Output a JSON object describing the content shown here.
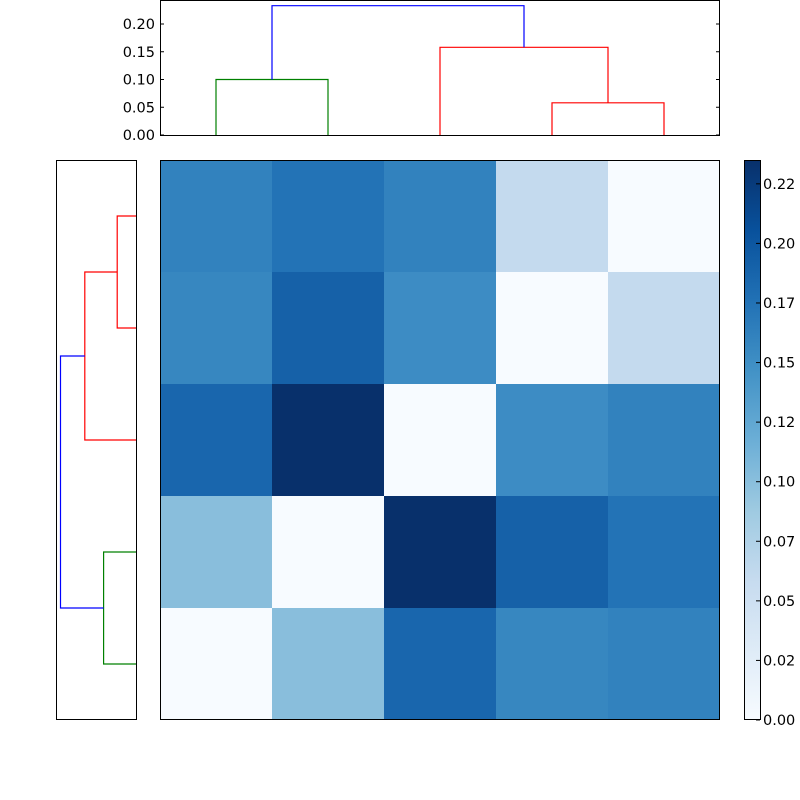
{
  "chart_data": [
    {
      "type": "dendrogram",
      "name": "top-dendrogram",
      "orientation": "top",
      "ylabel": "",
      "xlabel": "",
      "ylim": [
        0,
        0.24
      ],
      "yticks": [
        "0.00",
        "0.05",
        "0.10",
        "0.15",
        "0.20"
      ],
      "leaf_positions": [
        0,
        1,
        2,
        3,
        4
      ],
      "links": [
        {
          "color": "#008000",
          "height": 0.1,
          "left": 0,
          "right": 1,
          "left_h": 0,
          "right_h": 0
        },
        {
          "color": "#ff0000",
          "height": 0.058,
          "left": 3,
          "right": 4,
          "left_h": 0,
          "right_h": 0
        },
        {
          "color": "#ff0000",
          "height": 0.158,
          "left": 2,
          "right": 3.5,
          "left_h": 0,
          "right_h": 0.058
        },
        {
          "color": "#0000ff",
          "height": 0.233,
          "left": 0.5,
          "right": 2.75,
          "left_h": 0.1,
          "right_h": 0.158
        }
      ]
    },
    {
      "type": "dendrogram",
      "name": "left-dendrogram",
      "orientation": "left",
      "xlim": [
        0.24,
        0
      ],
      "leaf_positions": [
        0,
        1,
        2,
        3,
        4
      ],
      "links": [
        {
          "color": "#ff0000",
          "height": 0.058,
          "top": 0,
          "bottom": 1,
          "top_h": 0,
          "bottom_h": 0
        },
        {
          "color": "#ff0000",
          "height": 0.158,
          "top": 0.5,
          "bottom": 2,
          "top_h": 0.058,
          "bottom_h": 0
        },
        {
          "color": "#008000",
          "height": 0.1,
          "top": 3,
          "bottom": 4,
          "top_h": 0,
          "bottom_h": 0
        },
        {
          "color": "#0000ff",
          "height": 0.233,
          "top": 1.25,
          "bottom": 3.5,
          "top_h": 0.158,
          "bottom_h": 0.1
        }
      ]
    },
    {
      "type": "heatmap",
      "name": "distance-matrix",
      "colormap": "Blues",
      "rows": 5,
      "cols": 5,
      "values": [
        [
          0.145,
          0.175,
          0.145,
          0.05,
          0.0
        ],
        [
          0.14,
          0.19,
          0.13,
          0.0,
          0.05
        ],
        [
          0.185,
          0.235,
          0.0,
          0.13,
          0.145
        ],
        [
          0.09,
          0.0,
          0.235,
          0.19,
          0.175
        ],
        [
          0.0,
          0.09,
          0.185,
          0.14,
          0.145
        ]
      ],
      "colors": [
        [
          "#3282be",
          "#2373b6",
          "#3282be",
          "#c4daee",
          "#f7fbff"
        ],
        [
          "#3787c0",
          "#1661a8",
          "#3d8cc4",
          "#f7fbff",
          "#c4daee"
        ],
        [
          "#1966ad",
          "#08306b",
          "#f7fbff",
          "#3d8cc4",
          "#3282be"
        ],
        [
          "#89bedc",
          "#f7fbff",
          "#08306b",
          "#1661a8",
          "#2373b6"
        ],
        [
          "#f7fbff",
          "#89bedc",
          "#1966ad",
          "#3787c0",
          "#3282be"
        ]
      ]
    },
    {
      "type": "colorbar",
      "name": "colorbar",
      "colormap": "Blues",
      "range": [
        0,
        0.235
      ],
      "ticks": [
        {
          "value": 0.0,
          "label": "0.00"
        },
        {
          "value": 0.025,
          "label": "0.02"
        },
        {
          "value": 0.05,
          "label": "0.05"
        },
        {
          "value": 0.075,
          "label": "0.07"
        },
        {
          "value": 0.1,
          "label": "0.10"
        },
        {
          "value": 0.125,
          "label": "0.12"
        },
        {
          "value": 0.15,
          "label": "0.15"
        },
        {
          "value": 0.175,
          "label": "0.17"
        },
        {
          "value": 0.2,
          "label": "0.20"
        },
        {
          "value": 0.225,
          "label": "0.22"
        }
      ]
    }
  ],
  "labels": {
    "top_yticks": [
      "0.00",
      "0.05",
      "0.10",
      "0.15",
      "0.20"
    ],
    "colorbar_ticks": [
      "0.00",
      "0.02",
      "0.05",
      "0.07",
      "0.10",
      "0.12",
      "0.15",
      "0.17",
      "0.20",
      "0.22"
    ]
  }
}
